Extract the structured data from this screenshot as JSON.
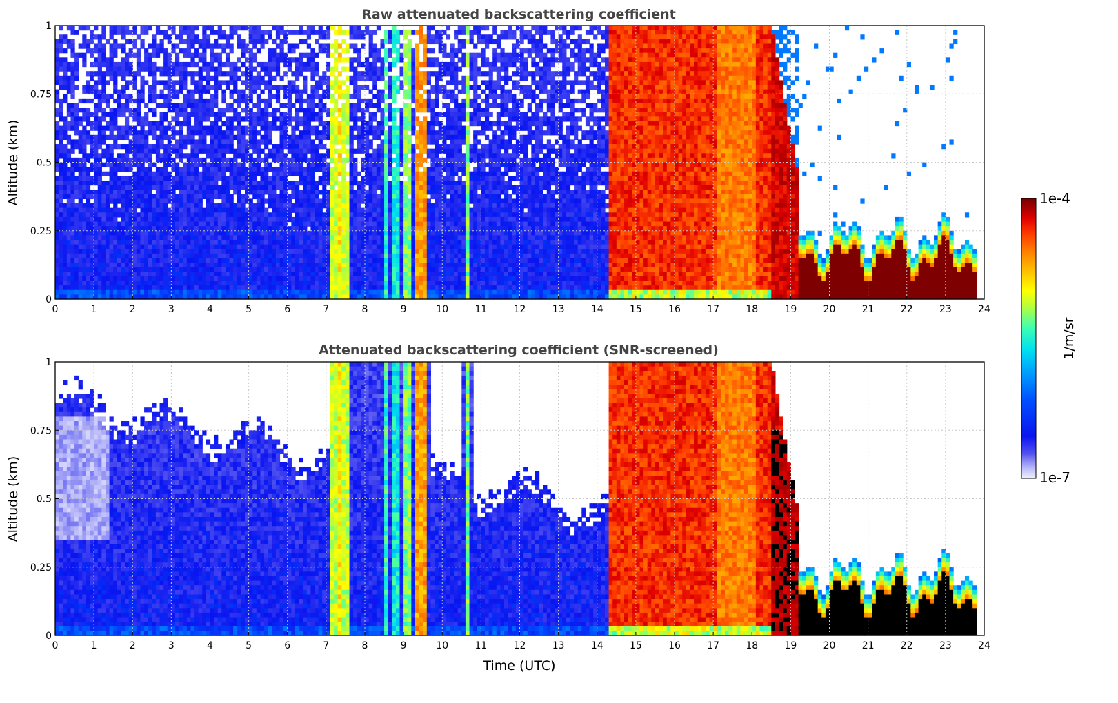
{
  "chart_data": [
    {
      "type": "heatmap",
      "title": "Raw attenuated backscattering coefficient",
      "xlabel": "",
      "ylabel": "Altitude (km)",
      "xlim": [
        0,
        24
      ],
      "ylim": [
        0,
        1
      ],
      "xticks": [
        "0",
        "1",
        "2",
        "3",
        "4",
        "5",
        "6",
        "7",
        "8",
        "9",
        "10",
        "11",
        "12",
        "13",
        "14",
        "15",
        "16",
        "17",
        "18",
        "19",
        "20",
        "21",
        "22",
        "23",
        "24"
      ],
      "yticks": [
        "0",
        "0.25",
        "0.5",
        "0.75",
        "1"
      ],
      "grid": true,
      "x_end": 23.8,
      "regimes": [
        {
          "x": [
            0,
            7.1
          ],
          "level": "low",
          "note": "noisy blue"
        },
        {
          "x": [
            7.1,
            7.6
          ],
          "level": "medium"
        },
        {
          "x": [
            7.6,
            8.5
          ],
          "level": "low"
        },
        {
          "x": [
            8.5,
            9.7
          ],
          "level": "medium-high"
        },
        {
          "x": [
            9.7,
            10.6
          ],
          "level": "low"
        },
        {
          "x": [
            10.6,
            10.8
          ],
          "level": "medium"
        },
        {
          "x": [
            10.8,
            14.3
          ],
          "level": "low"
        },
        {
          "x": [
            14.3,
            18.5
          ],
          "level": "high",
          "note": "red/orange full column"
        },
        {
          "x": [
            18.5,
            19.2
          ],
          "level": "high",
          "note": "decaying"
        },
        {
          "x": [
            19.2,
            23.8
          ],
          "level": "very-high",
          "note": "dark red layer below 0.15 km"
        }
      ]
    },
    {
      "type": "heatmap",
      "title": "Attenuated backscattering coefficient (SNR-screened)",
      "xlabel": "Time (UTC)",
      "ylabel": "Altitude (km)",
      "xlim": [
        0,
        24
      ],
      "ylim": [
        0,
        1
      ],
      "xticks": [
        "0",
        "1",
        "2",
        "3",
        "4",
        "5",
        "6",
        "7",
        "8",
        "9",
        "10",
        "11",
        "12",
        "13",
        "14",
        "15",
        "16",
        "17",
        "18",
        "19",
        "20",
        "21",
        "22",
        "23",
        "24"
      ],
      "yticks": [
        "0",
        "0.25",
        "0.5",
        "0.75",
        "1"
      ],
      "grid": true,
      "x_end": 23.8
    }
  ],
  "colorbar": {
    "label": "1/m/sr",
    "max_label": "1e-4",
    "min_label": "1e-7",
    "colormap": [
      "#f0f0ff",
      "#b4b4f8",
      "#5050f0",
      "#0a14f0",
      "#0050ff",
      "#00a0ff",
      "#00e0f0",
      "#40ffb0",
      "#b0ff40",
      "#ffff00",
      "#ffc000",
      "#ff8000",
      "#ff4000",
      "#e00000",
      "#a00000",
      "#780000"
    ]
  }
}
